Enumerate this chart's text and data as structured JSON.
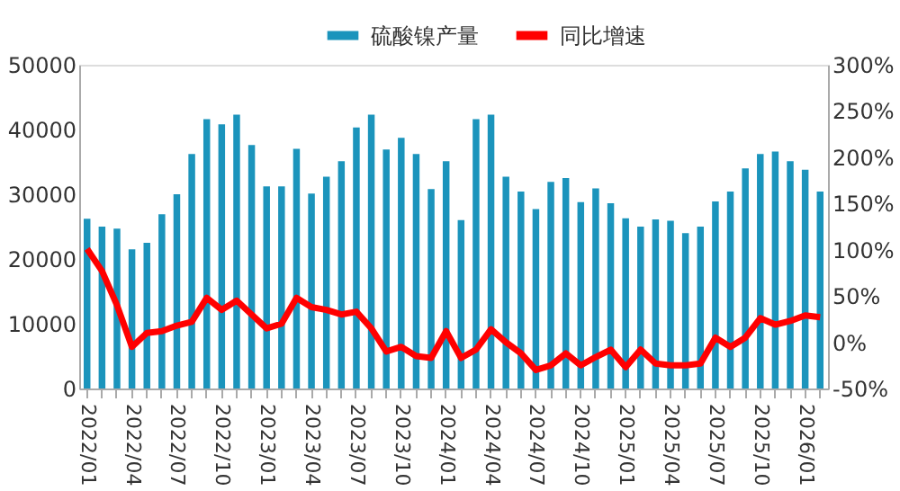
{
  "chart_data": {
    "type": "bar",
    "categories": [
      "2022/01",
      null,
      null,
      "2022/04",
      null,
      null,
      "2022/07",
      null,
      null,
      "2022/10",
      null,
      null,
      "2023/01",
      null,
      null,
      "2023/04",
      null,
      null,
      "2023/07",
      null,
      null,
      "2023/10",
      null,
      null,
      "2024/01",
      null,
      null,
      "2024/04",
      null,
      null,
      "2024/07",
      null,
      null,
      "2024/10",
      null,
      null,
      "2025/01",
      null,
      null,
      "2025/04",
      null,
      null,
      "2025/07",
      null,
      null,
      "2025/10",
      null,
      null,
      "2026/01",
      null
    ],
    "series": [
      {
        "name": "硫酸镍产量",
        "color": "#1b94bc",
        "values": [
          26200,
          25000,
          24700,
          21500,
          22500,
          26900,
          30000,
          36200,
          41600,
          40800,
          42300,
          37600,
          31200,
          31200,
          37000,
          30100,
          32700,
          35100,
          40300,
          42300,
          36900,
          38700,
          36200,
          30800,
          35100,
          26000,
          41600,
          42300,
          32700,
          30400,
          27700,
          31900,
          32500,
          28800,
          30900,
          28600,
          26300,
          25000,
          26100,
          25900,
          24000,
          25000,
          28900,
          30400,
          34000,
          36200,
          36600,
          35100,
          33800,
          30400
        ]
      },
      {
        "name": "同比增速",
        "type": "line",
        "axis": "y2",
        "color": "#ff0000",
        "values": [
          101,
          77,
          40,
          -5,
          10,
          12,
          18,
          22,
          48,
          35,
          45,
          30,
          15,
          20,
          48,
          38,
          35,
          30,
          33,
          15,
          -10,
          -5,
          -15,
          -17,
          12,
          -17,
          -8,
          14,
          0,
          -12,
          -30,
          -25,
          -12,
          -25,
          -16,
          -8,
          -27,
          -8,
          -23,
          -25,
          -25,
          -23,
          5,
          -5,
          5,
          26,
          19,
          23,
          29,
          27
        ]
      }
    ],
    "ylim": [
      0,
      50000
    ],
    "yticks": [
      0,
      10000,
      20000,
      30000,
      40000,
      50000
    ],
    "y2lim": [
      -50,
      300
    ],
    "y2ticks": [
      {
        "value": -50,
        "label": "-50%"
      },
      {
        "value": 0,
        "label": "0%"
      },
      {
        "value": 50,
        "label": "50%"
      },
      {
        "value": 100,
        "label": "100%"
      },
      {
        "value": 150,
        "label": "150%"
      },
      {
        "value": 200,
        "label": "200%"
      },
      {
        "value": 250,
        "label": "250%"
      },
      {
        "value": 300,
        "label": "300%"
      }
    ],
    "grid": false,
    "legend": "top right",
    "line_style": "solid",
    "marker": "none"
  }
}
